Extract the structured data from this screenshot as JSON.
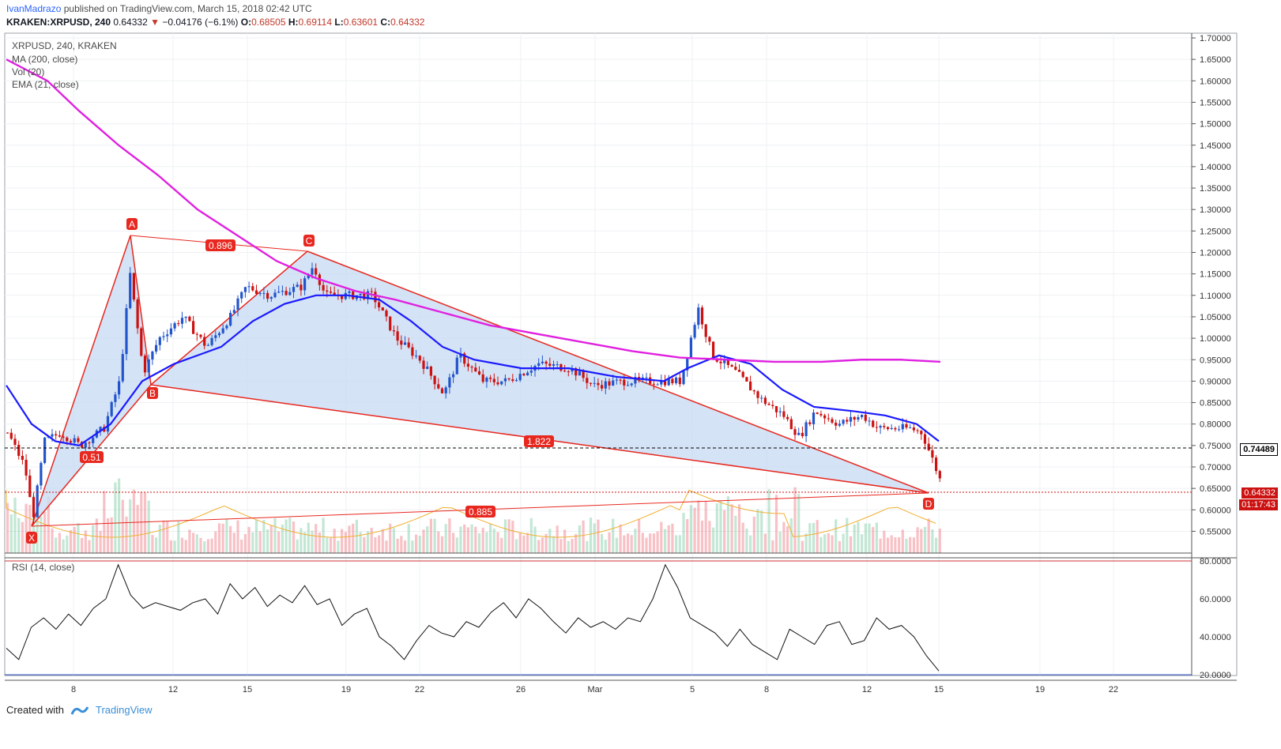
{
  "header": {
    "author": "IvanMadrazo",
    "published": "published on TradingView.com, March 15, 2018 02:42 UTC",
    "symbol_line": "KRAKEN:XRPUSD, 240",
    "last": "0.64332",
    "change": "−0.04176 (−6.1%)",
    "o_label": "O:",
    "o": "0.68505",
    "h_label": "H:",
    "h": "0.69114",
    "l_label": "L:",
    "l": "0.63601",
    "c_label": "C:",
    "c": "0.64332"
  },
  "legend": {
    "symbol": "XRPUSD, 240, KRAKEN",
    "ma": "MA (200, close)",
    "vol": "Vol (20)",
    "ema": "EMA (21, close)",
    "rsi": "RSI (14, close)"
  },
  "footer": {
    "created": "Created with",
    "brand": "TradingView"
  },
  "price_tags": {
    "level": "0.74489",
    "last": "0.64332",
    "countdown": "01:17:43"
  },
  "colors": {
    "up": "#53b987",
    "down": "#eb4d5c",
    "ema": "#1a1aff",
    "ma": "#e020e0",
    "pattern": "#e8271f",
    "fill": "#c9dcf3",
    "blue_candle": "#2255cc",
    "red_candle": "#cc1111"
  },
  "chart_data": [
    {
      "type": "candlestick",
      "title": "XRPUSD, 240, KRAKEN",
      "x_ticks": [
        "8",
        "12",
        "15",
        "19",
        "22",
        "26",
        "Mar",
        "5",
        "8",
        "12",
        "15",
        "19",
        "22"
      ],
      "y_ticks": [
        "1.70000",
        "1.65000",
        "1.60000",
        "1.55000",
        "1.50000",
        "1.45000",
        "1.40000",
        "1.35000",
        "1.30000",
        "1.25000",
        "1.20000",
        "1.15000",
        "1.10000",
        "1.05000",
        "1.00000",
        "0.95000",
        "0.90000",
        "0.85000",
        "0.80000",
        "0.75000",
        "0.70000",
        "0.65000",
        "0.60000",
        "0.55000"
      ],
      "ylim": [
        0.52,
        1.7
      ],
      "pattern_points": [
        {
          "label": "X",
          "price": 0.56
        },
        {
          "label": "A",
          "price": 1.24
        },
        {
          "label": "B",
          "price": 0.89
        },
        {
          "label": "C",
          "price": 1.2
        },
        {
          "label": "D",
          "price": 0.64
        }
      ],
      "ratios": [
        "0.896",
        "0.51",
        "1.822",
        "0.885"
      ],
      "ema_21_approx": [
        0.89,
        0.8,
        0.75,
        0.9,
        0.98,
        1.08,
        1.1,
        1.08,
        1.0,
        0.95,
        0.92,
        0.92,
        0.9,
        0.89,
        0.95,
        0.93,
        0.87,
        0.83,
        0.82,
        0.8,
        0.76
      ],
      "ma_200_approx": [
        1.65,
        1.45,
        1.3,
        1.18,
        1.11,
        1.05,
        1.0,
        0.97,
        0.95,
        0.945,
        0.945,
        0.95,
        0.945
      ]
    },
    {
      "type": "line",
      "title": "RSI (14, close)",
      "y_ticks": [
        "80.0000",
        "60.0000",
        "40.0000",
        "20.0000"
      ],
      "ylim": [
        20,
        80
      ],
      "values": [
        34,
        28,
        45,
        50,
        44,
        52,
        46,
        55,
        60,
        78,
        62,
        55,
        58,
        56,
        54,
        58,
        60,
        52,
        68,
        60,
        66,
        56,
        62,
        58,
        67,
        57,
        60,
        46,
        52,
        55,
        40,
        35,
        28,
        38,
        46,
        42,
        40,
        48,
        45,
        53,
        58,
        50,
        60,
        55,
        48,
        42,
        50,
        45,
        48,
        44,
        50,
        48,
        60,
        78,
        66,
        50,
        46,
        42,
        35,
        44,
        36,
        32,
        28,
        44,
        40,
        36,
        46,
        48,
        36,
        38,
        50,
        44,
        46,
        40,
        30,
        22
      ]
    }
  ]
}
